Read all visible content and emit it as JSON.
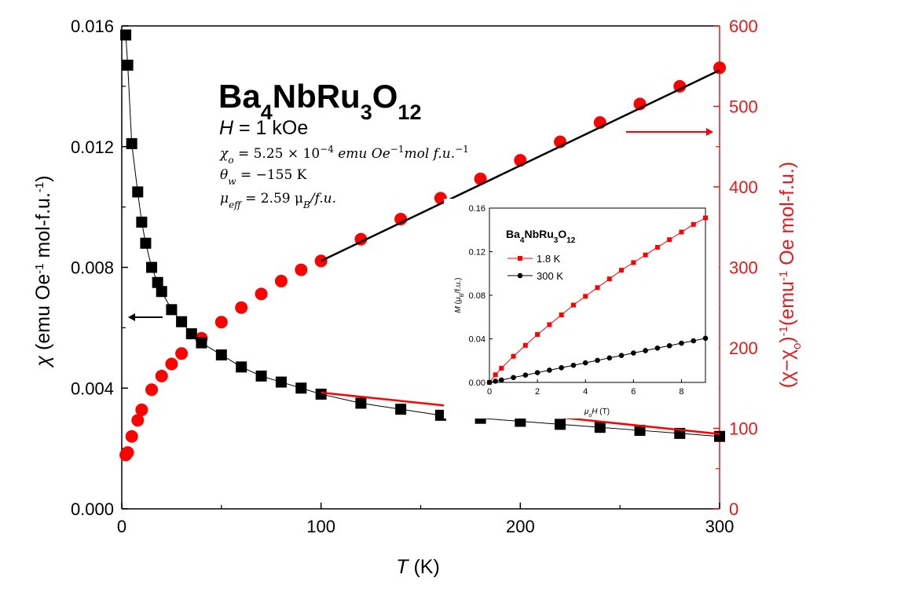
{
  "colors": {
    "left_series": "#000000",
    "right_series": "#ff0000",
    "right_axis": "#e31a1c",
    "fit_on_red": "#000000",
    "fit_on_black": "#ff0000"
  },
  "annotations": {
    "compound": {
      "base1": "Ba",
      "sub1": "4",
      "base2": "NbRu",
      "sub2": "3",
      "base3": "O",
      "sub3": "12"
    },
    "field": {
      "var": "H",
      "rest": " = 1 kOe"
    },
    "chi0": {
      "sym": "χ",
      "sub": "o",
      "eq": " = 5.25 × 10",
      "exp": "−4",
      "unit1": " emu Oe",
      "exp2": "−1",
      "unit2": "mol f.u.",
      "exp3": "−1"
    },
    "theta": {
      "sym": "θ",
      "sub": "w",
      "eq": " = −155 K"
    },
    "mu": {
      "sym": "μ",
      "sub": "eff",
      "eq": " = 2.59 μ",
      "sub2": "B",
      "tail": "/f.u."
    }
  },
  "chart_data": [
    {
      "type": "scatter",
      "xlabel": {
        "var": "T",
        "rest": " (K)"
      },
      "ylabel_left": {
        "sym": "χ",
        "text1": " (emu Oe",
        "sup1": "-1",
        "text2": " mol-f.u.",
        "sup2": "-1",
        "text3": ")"
      },
      "ylabel_right": {
        "text1": "(χ−χ",
        "sub": "o",
        "text2": ")",
        "sup1": "-1",
        "text3": "(emu",
        "sup2": "-1",
        "text4": " Oe mol-f.u.)"
      },
      "xlim": [
        0,
        300
      ],
      "ylim_left": [
        0,
        0.016
      ],
      "ylim_right": [
        0,
        600
      ],
      "x_ticks": [
        "0",
        "100",
        "200",
        "300"
      ],
      "y_left_ticks": [
        "0.000",
        "0.004",
        "0.008",
        "0.012",
        "0.016"
      ],
      "y_right_ticks": [
        "0",
        "100",
        "200",
        "300",
        "400",
        "500",
        "600"
      ],
      "series": [
        {
          "axis": "left",
          "marker": "square",
          "x": [
            2,
            3,
            5,
            8,
            10,
            12,
            15,
            18,
            20,
            25,
            30,
            35,
            40,
            50,
            60,
            70,
            80,
            90,
            100,
            120,
            140,
            160,
            180,
            200,
            220,
            240,
            260,
            280,
            300
          ],
          "y": [
            0.0157,
            0.0147,
            0.0121,
            0.0105,
            0.0095,
            0.0088,
            0.008,
            0.0075,
            0.0072,
            0.0066,
            0.0062,
            0.0058,
            0.0055,
            0.0051,
            0.0047,
            0.0044,
            0.0042,
            0.004,
            0.0038,
            0.0035,
            0.0033,
            0.0031,
            0.003,
            0.0029,
            0.0028,
            0.0027,
            0.0026,
            0.0025,
            0.0024
          ]
        },
        {
          "axis": "right",
          "marker": "circle",
          "x": [
            2,
            3,
            5,
            8,
            10,
            15,
            20,
            25,
            30,
            40,
            50,
            60,
            70,
            80,
            90,
            100,
            120,
            140,
            160,
            180,
            200,
            220,
            240,
            260,
            280,
            300
          ],
          "y": [
            67,
            70,
            90,
            110,
            123,
            148,
            165,
            180,
            193,
            212,
            232,
            250,
            267,
            283,
            297,
            308,
            335,
            360,
            386,
            410,
            433,
            456,
            480,
            503,
            525,
            548
          ]
        }
      ],
      "fits": [
        {
          "axis": "right",
          "color": "#000000",
          "x": [
            100,
            300
          ],
          "y": [
            308,
            545
          ]
        },
        {
          "axis": "left",
          "color": "#ff0000",
          "x": [
            100,
            300
          ],
          "y": [
            0.00385,
            0.00248
          ]
        }
      ],
      "arrows": [
        {
          "direction": "left",
          "points_to": "left axis",
          "color": "#000000"
        },
        {
          "direction": "right",
          "points_to": "right axis",
          "color": "#ff0000"
        }
      ]
    },
    {
      "type": "line",
      "title": {
        "base1": "Ba",
        "sub1": "4",
        "base2": "NbRu",
        "sub2": "3",
        "base3": "O",
        "sub3": "12"
      },
      "xlabel": {
        "var": "μ",
        "sub": "o",
        "var2": "H",
        "rest": " (T)"
      },
      "ylabel": {
        "var": "M",
        "text1": " (μ",
        "sub": "B",
        "text2": "/f.u.)"
      },
      "xlim": [
        0,
        9
      ],
      "ylim": [
        0,
        0.16
      ],
      "x_ticks": [
        "0",
        "2",
        "4",
        "6",
        "8"
      ],
      "y_ticks": [
        "0.00",
        "0.04",
        "0.08",
        "0.12",
        "0.16"
      ],
      "legend": "top-left",
      "series": [
        {
          "name": "1.8 K",
          "color": "#ff0000",
          "marker": "square",
          "x": [
            0,
            0.25,
            0.5,
            1,
            1.5,
            2,
            2.5,
            3,
            3.5,
            4,
            4.5,
            5,
            5.5,
            6,
            6.5,
            7,
            7.5,
            8,
            8.5,
            9
          ],
          "y": [
            0,
            0.007,
            0.013,
            0.024,
            0.034,
            0.044,
            0.053,
            0.062,
            0.071,
            0.079,
            0.087,
            0.095,
            0.103,
            0.11,
            0.117,
            0.124,
            0.131,
            0.138,
            0.145,
            0.151
          ]
        },
        {
          "name": "300 K",
          "color": "#000000",
          "marker": "circle",
          "x": [
            0,
            0.25,
            0.5,
            1,
            1.5,
            2,
            2.5,
            3,
            3.5,
            4,
            4.5,
            5,
            5.5,
            6,
            6.5,
            7,
            7.5,
            8,
            8.5,
            9
          ],
          "y": [
            0,
            0.0011,
            0.0022,
            0.0045,
            0.0067,
            0.009,
            0.0112,
            0.0135,
            0.0157,
            0.018,
            0.0202,
            0.0225,
            0.0247,
            0.027,
            0.0292,
            0.0315,
            0.0337,
            0.036,
            0.0382,
            0.0405
          ]
        }
      ]
    }
  ]
}
